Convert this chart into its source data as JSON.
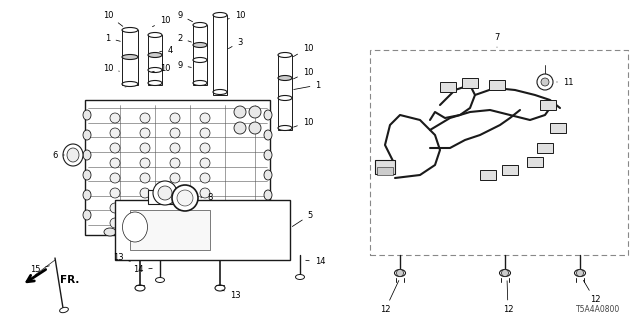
{
  "background_color": "#ffffff",
  "part_number": "T5A4A0800",
  "line_color": "#1a1a1a",
  "label_color": "#000000",
  "box_color": "#888888",
  "fig_width": 6.4,
  "fig_height": 3.2,
  "dpi": 100
}
